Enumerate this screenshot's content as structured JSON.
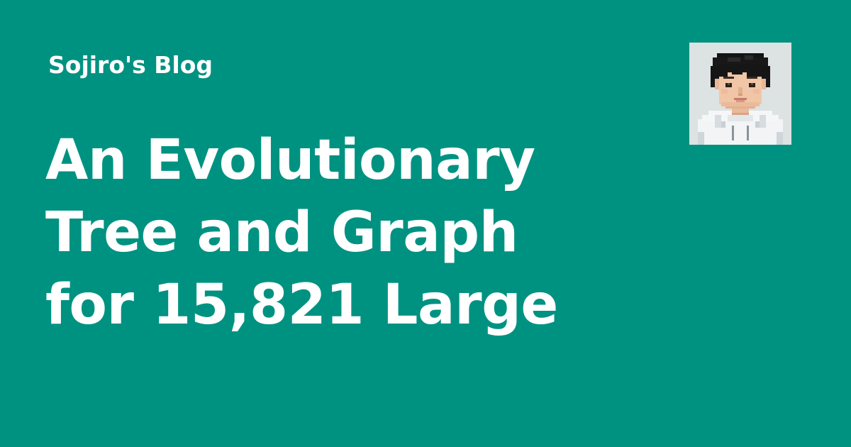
{
  "site": {
    "name": "Sojiro's Blog"
  },
  "post": {
    "title_lines": [
      "An Evolutionary",
      "Tree and Graph",
      "for 15,821 Large"
    ]
  },
  "avatar": {
    "icon": "pixel-art-portrait",
    "background_color": "#dde2e2"
  },
  "colors": {
    "background": "#009281",
    "text": "#ffffff"
  }
}
